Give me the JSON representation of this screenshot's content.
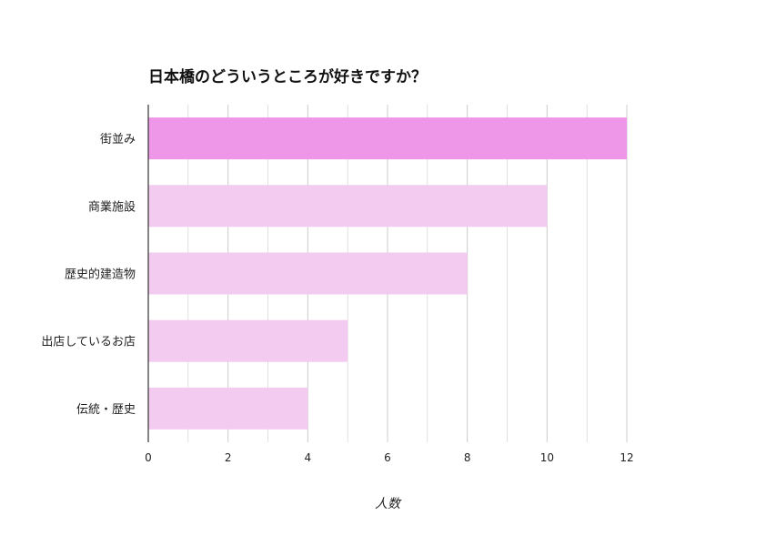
{
  "chart_data": {
    "type": "bar",
    "orientation": "horizontal",
    "title": "日本橋のどういうところが好きですか？",
    "xlabel": "人数",
    "ylabel": "",
    "categories": [
      "街並み",
      "商業施設",
      "歴史的建造物",
      "出店しているお店",
      "伝統・歴史"
    ],
    "values": [
      12,
      10,
      8,
      5,
      4
    ],
    "xlim": [
      0,
      12
    ],
    "xticks": [
      "0",
      "2",
      "4",
      "6",
      "8",
      "10",
      "12"
    ],
    "grid": true,
    "legend": "none",
    "colors": {
      "highlight": "#ee96e8",
      "default": "#f3cbf1",
      "grid": "#cccccc",
      "axis": "#333333"
    }
  }
}
